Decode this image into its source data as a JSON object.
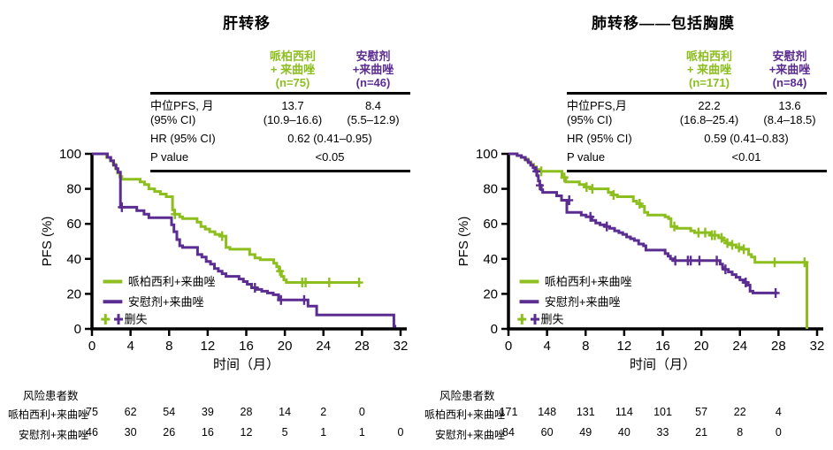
{
  "colors": {
    "green": "#8CBE1E",
    "purple": "#5B2D91",
    "axis": "#000000"
  },
  "chart_data": [
    {
      "type": "line",
      "subtype": "kaplan-meier-step",
      "title": "肝转移",
      "xlabel": "时间（月）",
      "ylabel": "PFS (%)",
      "xlim": [
        0,
        32
      ],
      "ylim": [
        0,
        100
      ],
      "xticks": [
        0,
        4,
        8,
        12,
        16,
        20,
        24,
        28,
        32
      ],
      "yticks": [
        0,
        20,
        40,
        60,
        80,
        100
      ],
      "grid": false,
      "legend_position": "lower-left",
      "stats": {
        "col1_lines": [
          "哌柏西利",
          "+ 来曲唑",
          "(n=75)"
        ],
        "col2_lines": [
          "安慰剂",
          "+来曲唑",
          "(n=46)"
        ],
        "median_label": "中位PFS, 月",
        "median_label2": "(95% CI)",
        "median1": "13.7",
        "median1_ci": "(10.9–16.6)",
        "median2": "8.4",
        "median2_ci": "(5.5–12.9)",
        "hr_label": "HR (95% CI)",
        "hr_value": "0.62 (0.41–0.95)",
        "p_label": "P value",
        "p_value": "<0.05"
      },
      "series": [
        {
          "name": "哌柏西利+来曲唑",
          "n": 75,
          "color_key": "green",
          "start": 100,
          "steps": [
            [
              1.5,
              98
            ],
            [
              1.9,
              96
            ],
            [
              2.2,
              94
            ],
            [
              2.45,
              91.5
            ],
            [
              2.65,
              89
            ],
            [
              2.9,
              87
            ],
            [
              3.1,
              85.5
            ],
            [
              5.0,
              84
            ],
            [
              5.45,
              82.5
            ],
            [
              5.9,
              80
            ],
            [
              6.5,
              78.5
            ],
            [
              7.1,
              77
            ],
            [
              7.7,
              75.5
            ],
            [
              8.35,
              68
            ],
            [
              8.55,
              65.5
            ],
            [
              9.1,
              64
            ],
            [
              9.4,
              63
            ],
            [
              10.9,
              61
            ],
            [
              11.3,
              58.5
            ],
            [
              11.75,
              57
            ],
            [
              12.2,
              55.5
            ],
            [
              12.75,
              54
            ],
            [
              13.3,
              53
            ],
            [
              13.9,
              46.5
            ],
            [
              14.3,
              45.5
            ],
            [
              16.35,
              42.5
            ],
            [
              16.9,
              40.5
            ],
            [
              17.45,
              39.5
            ],
            [
              18.85,
              37.5
            ],
            [
              19.15,
              35.5
            ],
            [
              19.4,
              33
            ],
            [
              19.65,
              30
            ],
            [
              19.9,
              28
            ],
            [
              20.15,
              26.5
            ],
            [
              27.8,
              26.5
            ]
          ],
          "censors": [
            [
              8.6,
              65.5
            ],
            [
              13.5,
              53
            ],
            [
              19.5,
              33
            ],
            [
              21.8,
              26.5
            ],
            [
              22.15,
              26.5
            ],
            [
              24.6,
              26.5
            ],
            [
              27.7,
              26.5
            ]
          ]
        },
        {
          "name": "安慰剂+来曲唑",
          "n": 46,
          "color_key": "purple",
          "start": 100,
          "steps": [
            [
              1.6,
              98
            ],
            [
              1.95,
              96
            ],
            [
              2.25,
              93.5
            ],
            [
              2.5,
              91.5
            ],
            [
              2.7,
              89.5
            ],
            [
              2.95,
              69.5
            ],
            [
              4.65,
              67.5
            ],
            [
              5.4,
              65.5
            ],
            [
              5.9,
              63.5
            ],
            [
              8.25,
              59.5
            ],
            [
              8.5,
              55.5
            ],
            [
              8.8,
              51
            ],
            [
              9.1,
              47.5
            ],
            [
              9.4,
              46.5
            ],
            [
              10.95,
              42.5
            ],
            [
              11.4,
              41
            ],
            [
              11.85,
              38.5
            ],
            [
              12.3,
              37
            ],
            [
              12.7,
              34.5
            ],
            [
              13.1,
              33
            ],
            [
              13.5,
              31.5
            ],
            [
              13.9,
              30
            ],
            [
              15.25,
              28.5
            ],
            [
              15.7,
              27
            ],
            [
              16.1,
              25.5
            ],
            [
              16.55,
              23.5
            ],
            [
              17.1,
              22.5
            ],
            [
              17.6,
              21.5
            ],
            [
              18.2,
              20.5
            ],
            [
              18.8,
              19.5
            ],
            [
              19.35,
              16.5
            ],
            [
              22.4,
              13
            ],
            [
              23.3,
              8
            ],
            [
              31.3,
              1.5
            ],
            [
              31.55,
              1.5
            ]
          ],
          "censors": [
            [
              3.1,
              69.5
            ],
            [
              16.9,
              23.5
            ],
            [
              19.6,
              16.5
            ],
            [
              22.0,
              16.5
            ]
          ]
        }
      ],
      "legend": {
        "series": [
          "哌柏西利+来曲唑",
          "安慰剂+来曲唑"
        ],
        "censor_label": "删失"
      },
      "risk": {
        "title": "风险患者数",
        "rows": [
          {
            "label": "哌柏西利+来曲唑",
            "months": [
              0,
              4,
              8,
              12,
              16,
              20,
              24,
              28
            ],
            "values": [
              75,
              62,
              54,
              39,
              28,
              14,
              2,
              0
            ]
          },
          {
            "label": "安慰剂+来曲唑",
            "months": [
              0,
              4,
              8,
              12,
              16,
              20,
              24,
              28,
              32
            ],
            "values": [
              46,
              30,
              26,
              16,
              12,
              5,
              1,
              1,
              0
            ]
          }
        ]
      }
    },
    {
      "type": "line",
      "subtype": "kaplan-meier-step",
      "title": "肺转移——包括胸膜",
      "xlabel": "时间（月）",
      "ylabel": "PFS (%)",
      "xlim": [
        0,
        32
      ],
      "ylim": [
        0,
        100
      ],
      "xticks": [
        0,
        4,
        8,
        12,
        16,
        20,
        24,
        28,
        32
      ],
      "yticks": [
        0,
        20,
        40,
        60,
        80,
        100
      ],
      "grid": false,
      "legend_position": "lower-left",
      "stats": {
        "col1_lines": [
          "哌柏西利",
          "+ 来曲唑",
          "(n=171)"
        ],
        "col2_lines": [
          "安慰剂",
          "+来曲唑",
          "(n=84)"
        ],
        "median_label": "中位PFS,月",
        "median_label2": "(95% CI)",
        "median1": "22.2",
        "median1_ci": "(16.8–25.4)",
        "median2": "13.6",
        "median2_ci": "(8.4–18.5)",
        "hr_label": "HR (95% CI)",
        "hr_value": "0.59 (0.41–0.83)",
        "p_label": "P value",
        "p_value": "<0.01"
      },
      "series": [
        {
          "name": "哌柏西利+来曲唑",
          "n": 171,
          "color_key": "green",
          "start": 100,
          "steps": [
            [
              0.9,
              99
            ],
            [
              1.3,
              98
            ],
            [
              1.7,
              97
            ],
            [
              2.0,
              95.5
            ],
            [
              2.3,
              94
            ],
            [
              2.6,
              92.5
            ],
            [
              2.9,
              91
            ],
            [
              3.2,
              90
            ],
            [
              5.55,
              86.5
            ],
            [
              5.95,
              84
            ],
            [
              7.35,
              82.5
            ],
            [
              7.9,
              81
            ],
            [
              8.5,
              80
            ],
            [
              10.35,
              78
            ],
            [
              10.8,
              76.5
            ],
            [
              11.3,
              75.5
            ],
            [
              12.95,
              73
            ],
            [
              13.3,
              71.5
            ],
            [
              13.7,
              70
            ],
            [
              14.1,
              66.5
            ],
            [
              14.45,
              65
            ],
            [
              16.25,
              64
            ],
            [
              16.6,
              63
            ],
            [
              16.85,
              58.5
            ],
            [
              17.45,
              57.5
            ],
            [
              18.9,
              56
            ],
            [
              19.3,
              55
            ],
            [
              20.9,
              53.5
            ],
            [
              21.8,
              52
            ],
            [
              22.25,
              50.5
            ],
            [
              22.6,
              49
            ],
            [
              23.1,
              48
            ],
            [
              23.6,
              46.5
            ],
            [
              24.2,
              45.5
            ],
            [
              24.9,
              42.5
            ],
            [
              25.2,
              41
            ],
            [
              25.55,
              38
            ],
            [
              30.95,
              0
            ]
          ],
          "censors": [
            [
              3.4,
              90
            ],
            [
              5.8,
              86.5
            ],
            [
              8.1,
              81
            ],
            [
              8.7,
              80
            ],
            [
              10.9,
              76.5
            ],
            [
              13.6,
              71.5
            ],
            [
              17.2,
              58.5
            ],
            [
              19.7,
              55
            ],
            [
              20.4,
              55
            ],
            [
              21.1,
              53.5
            ],
            [
              21.4,
              53.5
            ],
            [
              22.1,
              52
            ],
            [
              22.7,
              49
            ],
            [
              23.2,
              48
            ],
            [
              23.9,
              46.5
            ],
            [
              24.4,
              45.5
            ],
            [
              27.6,
              38
            ],
            [
              30.7,
              38
            ]
          ]
        },
        {
          "name": "安慰剂+来曲唑",
          "n": 84,
          "color_key": "purple",
          "start": 100,
          "steps": [
            [
              0.9,
              99
            ],
            [
              1.35,
              98
            ],
            [
              1.75,
              96.5
            ],
            [
              2.05,
              95
            ],
            [
              2.3,
              93.5
            ],
            [
              2.55,
              92
            ],
            [
              2.75,
              90
            ],
            [
              2.95,
              87.5
            ],
            [
              3.1,
              84.5
            ],
            [
              3.25,
              82
            ],
            [
              3.4,
              79.5
            ],
            [
              3.55,
              78
            ],
            [
              5.0,
              76
            ],
            [
              5.5,
              73.5
            ],
            [
              6.05,
              66.5
            ],
            [
              7.55,
              65
            ],
            [
              8.05,
              64
            ],
            [
              8.65,
              62
            ],
            [
              9.05,
              60.5
            ],
            [
              9.5,
              59.5
            ],
            [
              10.0,
              58.5
            ],
            [
              10.5,
              57.5
            ],
            [
              11.0,
              56
            ],
            [
              11.45,
              55
            ],
            [
              11.85,
              54
            ],
            [
              12.25,
              52.5
            ],
            [
              12.65,
              51.5
            ],
            [
              13.05,
              50.5
            ],
            [
              13.5,
              48.5
            ],
            [
              14.0,
              47.5
            ],
            [
              14.25,
              45
            ],
            [
              16.25,
              43
            ],
            [
              16.55,
              41.5
            ],
            [
              16.8,
              40
            ],
            [
              17.1,
              39
            ],
            [
              21.95,
              37
            ],
            [
              22.2,
              35
            ],
            [
              22.45,
              34
            ],
            [
              22.8,
              32.5
            ],
            [
              23.2,
              31
            ],
            [
              23.6,
              29.5
            ],
            [
              24.0,
              28
            ],
            [
              24.4,
              26.5
            ],
            [
              24.8,
              25
            ],
            [
              25.05,
              21.5
            ],
            [
              25.35,
              20.5
            ],
            [
              27.9,
              20.5
            ]
          ],
          "censors": [
            [
              2.9,
              90
            ],
            [
              3.25,
              82
            ],
            [
              6.3,
              73.5
            ],
            [
              8.5,
              64
            ],
            [
              10.2,
              58.5
            ],
            [
              17.3,
              39
            ],
            [
              18.6,
              39
            ],
            [
              18.9,
              39
            ],
            [
              19.8,
              39
            ],
            [
              21.6,
              39
            ],
            [
              22.5,
              34
            ],
            [
              24.6,
              26.5
            ],
            [
              27.7,
              20.5
            ]
          ]
        }
      ],
      "legend": {
        "series": [
          "哌柏西利+来曲唑",
          "安慰剂+来曲唑"
        ],
        "censor_label": "删失"
      },
      "risk": {
        "title": "风险患者数",
        "rows": [
          {
            "label": "哌柏西利+来曲唑",
            "months": [
              0,
              4,
              8,
              12,
              16,
              20,
              24,
              28
            ],
            "values": [
              171,
              148,
              131,
              114,
              101,
              57,
              22,
              4
            ]
          },
          {
            "label": "安慰剂+来曲唑",
            "months": [
              0,
              4,
              8,
              12,
              16,
              20,
              24,
              28
            ],
            "values": [
              84,
              60,
              49,
              40,
              33,
              21,
              8,
              0
            ]
          }
        ]
      }
    }
  ]
}
